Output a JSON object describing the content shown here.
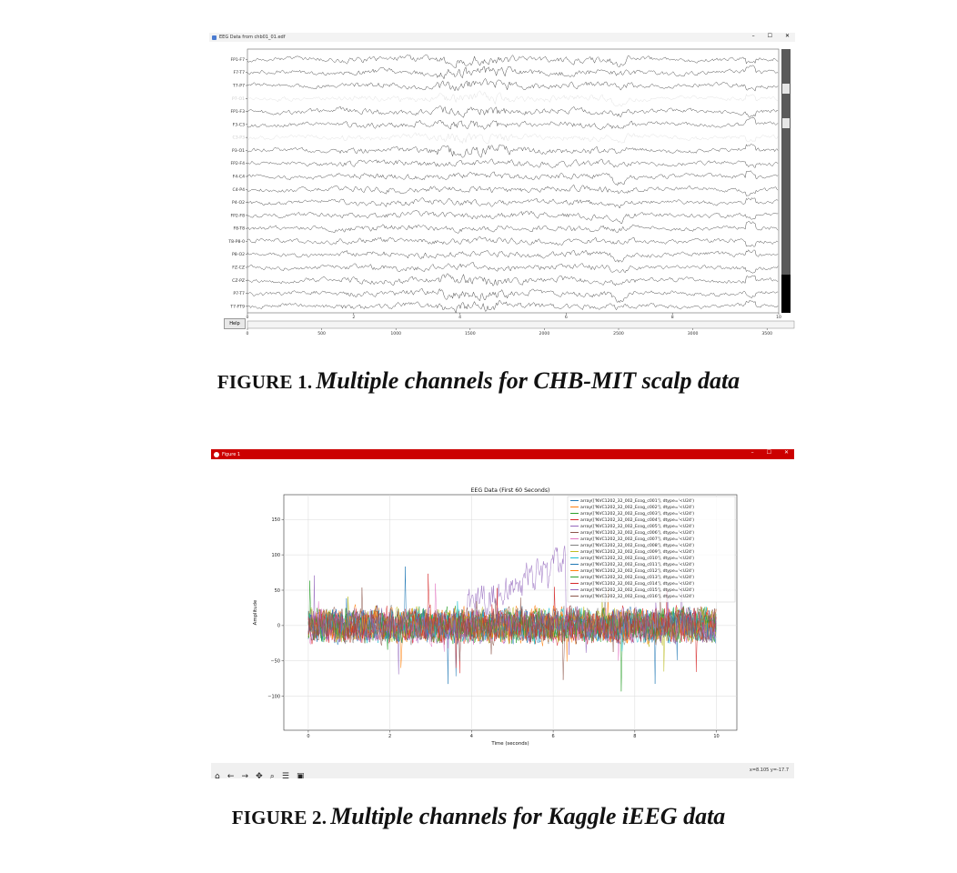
{
  "figure1": {
    "window_title": "EEG Data from chb01_01.edf",
    "window_controls": [
      "–",
      "☐",
      "✕"
    ],
    "channels": [
      "FP1-F7",
      "F7-T7",
      "T7-P7",
      "P7-O1",
      "FP1-F3",
      "F3-C3",
      "C3-P3",
      "P3-O1",
      "FP2-F4",
      "F4-C4",
      "C4-P4",
      "P4-O2",
      "FP2-F8",
      "F8-T8",
      "T8-P8-0",
      "P8-O2",
      "FZ-CZ",
      "CZ-PZ",
      "P7-T7",
      "T7-FT9"
    ],
    "faded_channels": [
      3,
      6
    ],
    "time_ticks": [
      "0",
      "2",
      "4",
      "6",
      "8",
      "10"
    ],
    "sample_ticks": [
      "0",
      "500",
      "1000",
      "1500",
      "2000",
      "2500",
      "3000",
      "3500"
    ],
    "help_label": "Help",
    "caption_label": "FIGURE 1.",
    "caption_text": "Multiple channels for CHB-MIT scalp data"
  },
  "figure2": {
    "window_title": "Figure 1",
    "window_controls": [
      "–",
      "☐",
      "✕"
    ],
    "toolbar_icons": [
      "home-icon",
      "back-icon",
      "forward-icon",
      "pan-icon",
      "zoom-icon",
      "configure-icon",
      "save-icon"
    ],
    "status_readout": "x=8.105 y=-17.7",
    "caption_label": "FIGURE 2.",
    "caption_text": "Multiple channels for Kaggle iEEG data",
    "chart_data": {
      "type": "line",
      "title": "EEG Data (First 60 Seconds)",
      "xlabel": "Time (seconds)",
      "ylabel": "Amplitude",
      "xlim": [
        -0.6,
        10.5
      ],
      "ylim": [
        -148,
        185
      ],
      "xticks": [
        0,
        2,
        4,
        6,
        8,
        10
      ],
      "yticks": [
        -100,
        -50,
        0,
        50,
        100,
        150
      ],
      "grid": true,
      "legend_position": "top-right",
      "legend_entries": [
        "array(['NVC1202_32_002_Ecog_c001'], dtype='<U24')",
        "array(['NVC1202_32_002_Ecog_c002'], dtype='<U24')",
        "array(['NVC1202_32_002_Ecog_c003'], dtype='<U24')",
        "array(['NVC1202_32_002_Ecog_c004'], dtype='<U24')",
        "array(['NVC1202_32_002_Ecog_c005'], dtype='<U24')",
        "array(['NVC1202_32_002_Ecog_c006'], dtype='<U24')",
        "array(['NVC1202_32_002_Ecog_c007'], dtype='<U24')",
        "array(['NVC1202_32_002_Ecog_c008'], dtype='<U24')",
        "array(['NVC1202_32_002_Ecog_c009'], dtype='<U24')",
        "array(['NVC1202_32_002_Ecog_c010'], dtype='<U24')",
        "array(['NVC1202_32_002_Ecog_c011'], dtype='<U24')",
        "array(['NVC1202_32_002_Ecog_c012'], dtype='<U24')",
        "array(['NVC1202_32_002_Ecog_c013'], dtype='<U24')",
        "array(['NVC1202_32_002_Ecog_c014'], dtype='<U24')",
        "array(['NVC1202_32_002_Ecog_c015'], dtype='<U24')",
        "array(['NVC1202_32_002_Ecog_c016'], dtype='<U24')"
      ],
      "series_colors": [
        "#1f77b4",
        "#ff7f0e",
        "#2ca02c",
        "#d62728",
        "#9467bd",
        "#8c564b",
        "#e377c2",
        "#7f7f7f",
        "#bcbd22",
        "#17becf",
        "#1f77b4",
        "#ff7f0e",
        "#2ca02c",
        "#d62728",
        "#9467bd",
        "#8c564b"
      ]
    }
  }
}
